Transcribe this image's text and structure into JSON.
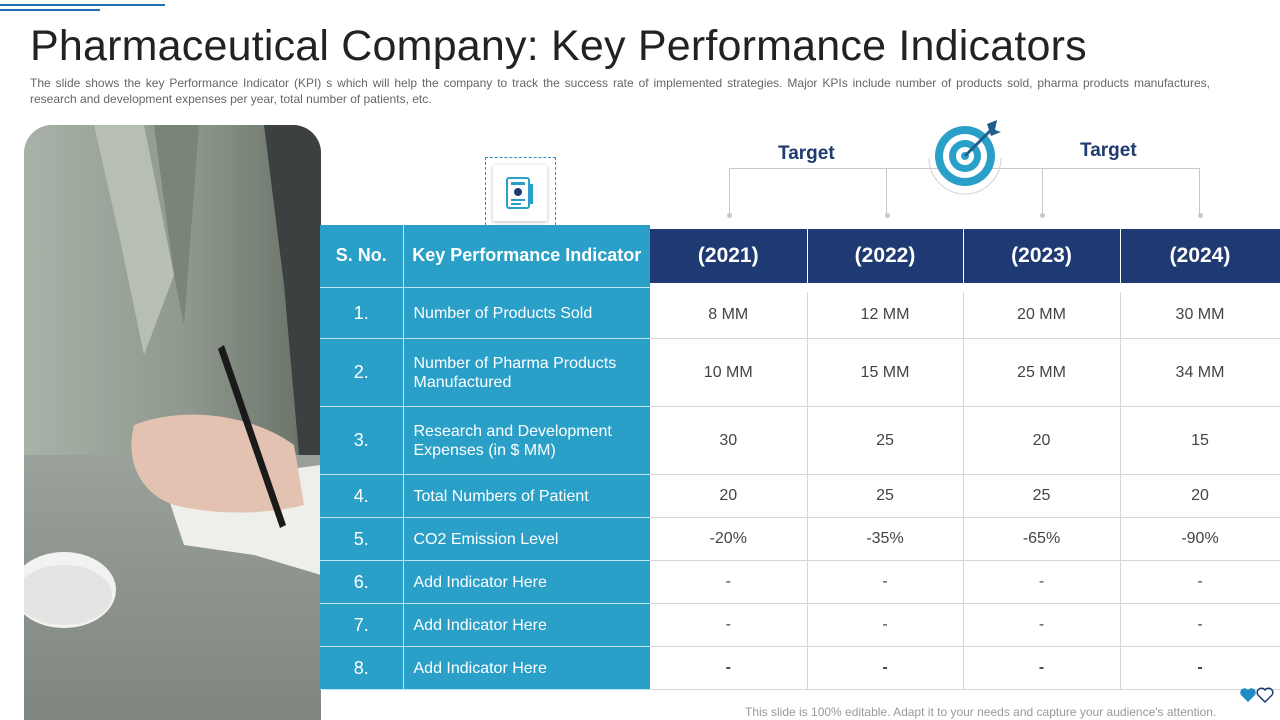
{
  "header": {
    "title": "Pharmaceutical Company: Key Performance Indicators",
    "subtitle": "The slide shows the key Performance Indicator (KPI) s which will help the company to track the success rate of implemented strategies. Major KPIs include number of products sold, pharma products manufactures, research and development expenses per year, total number of patients, etc."
  },
  "targets": {
    "left_label": "Target",
    "right_label": "Target"
  },
  "table": {
    "col_sno": "S. No.",
    "col_kpi": "Key Performance Indicator",
    "years": [
      "(2021)",
      "(2022)",
      "(2023)",
      "(2024)"
    ],
    "rows": [
      {
        "sno": "1.",
        "kpi": "Number of Products Sold",
        "values": [
          "8 MM",
          "12 MM",
          "20 MM",
          "30 MM"
        ]
      },
      {
        "sno": "2.",
        "kpi": "Number of Pharma Products Manufactured",
        "values": [
          "10 MM",
          "15 MM",
          "25 MM",
          "34 MM"
        ]
      },
      {
        "sno": "3.",
        "kpi": "Research and Development Expenses (in $ MM)",
        "values": [
          "30",
          "25",
          "20",
          "15"
        ]
      },
      {
        "sno": "4.",
        "kpi": "Total Numbers of Patient",
        "values": [
          "20",
          "25",
          "25",
          "20"
        ]
      },
      {
        "sno": "5.",
        "kpi": "CO2 Emission Level",
        "values": [
          "-20%",
          "-35%",
          "-65%",
          "-90%"
        ]
      },
      {
        "sno": "6.",
        "kpi": "Add Indicator Here",
        "values": [
          "-",
          "-",
          "-",
          "-"
        ]
      },
      {
        "sno": "7.",
        "kpi": "Add Indicator Here",
        "values": [
          "-",
          "-",
          "-",
          "-"
        ]
      },
      {
        "sno": "8.",
        "kpi": "Add Indicator Here",
        "values": [
          "-",
          "-",
          "-",
          "-"
        ]
      }
    ]
  },
  "footer": {
    "note": "This slide is 100% editable. Adapt it to your needs and capture your audience's attention."
  },
  "icons": {
    "document": "document-icon",
    "target": "target-icon",
    "logo": "brand-logo-icon"
  },
  "colors": {
    "teal": "#2aa0c9",
    "navy": "#1f3a72",
    "accent": "#1e6fb5"
  }
}
